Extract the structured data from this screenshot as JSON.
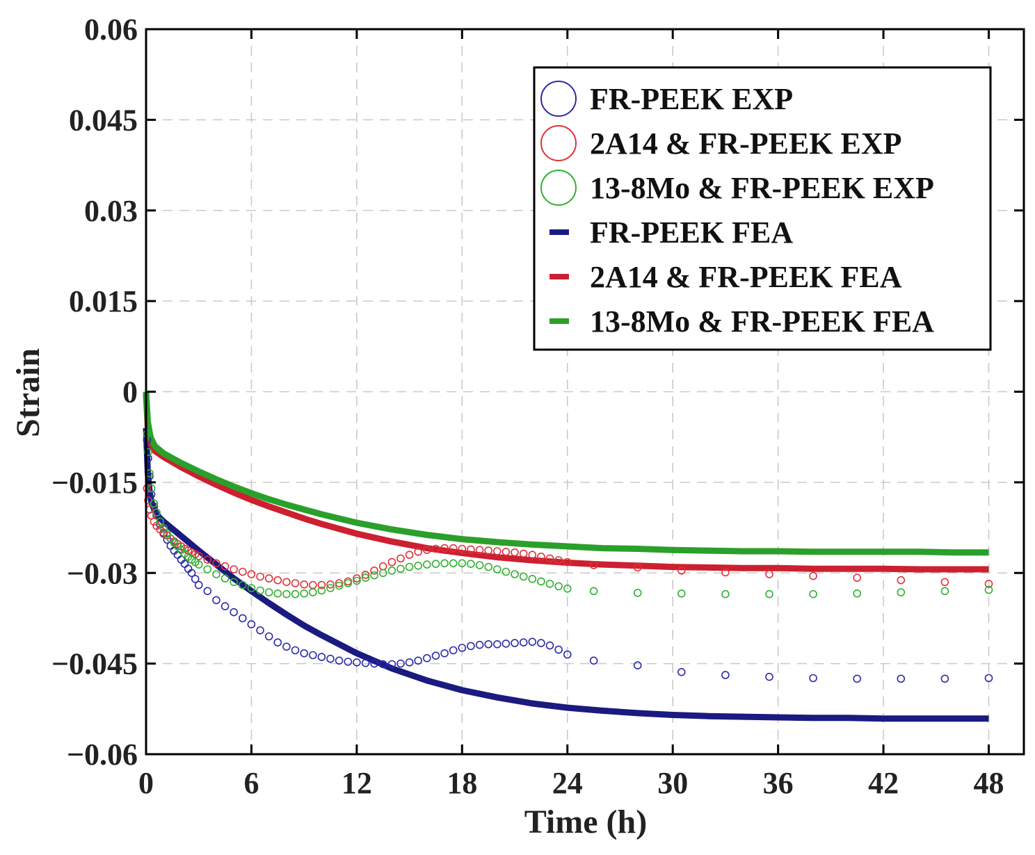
{
  "chart_data": {
    "type": "line",
    "title": "",
    "xlabel": "Time (h)",
    "ylabel": "Strain",
    "xlim": [
      0,
      50
    ],
    "ylim": [
      -0.06,
      0.06
    ],
    "xticks": [
      0,
      6,
      12,
      18,
      24,
      30,
      36,
      42,
      48
    ],
    "yticks": [
      0.06,
      0.045,
      0.03,
      0.015,
      0,
      -0.015,
      -0.03,
      -0.045,
      -0.06
    ],
    "xtick_labels": [
      "0",
      "6",
      "12",
      "18",
      "24",
      "30",
      "36",
      "42",
      "48"
    ],
    "ytick_labels": [
      "0.06",
      "0.045",
      "0.03",
      "0.015",
      "0",
      "−0.015",
      "−0.03",
      "−0.045",
      "−0.06"
    ],
    "grid": true,
    "legend_position": "top-right",
    "series": [
      {
        "name": "FR-PEEK EXP",
        "style": "markers",
        "color": "#2a2aa8",
        "x": [
          0.05,
          0.12,
          0.2,
          0.3,
          0.45,
          0.6,
          0.8,
          1.0,
          1.2,
          1.4,
          1.6,
          1.8,
          2.0,
          2.2,
          2.4,
          2.6,
          2.8,
          3.0,
          3.5,
          4.0,
          4.5,
          5.0,
          5.5,
          6.0,
          6.5,
          7.0,
          7.5,
          8.0,
          8.5,
          9.0,
          9.5,
          10.0,
          10.5,
          11.0,
          11.5,
          12.0,
          12.5,
          13.0,
          13.5,
          14.0,
          14.5,
          15.0,
          15.5,
          16.0,
          16.5,
          17.0,
          17.5,
          18.0,
          18.5,
          19.0,
          19.5,
          20.0,
          20.5,
          21.0,
          21.5,
          22.0,
          22.5,
          23.0,
          23.5,
          24.0,
          25.5,
          28.0,
          30.5,
          33.0,
          35.5,
          38.0,
          40.5,
          43.0,
          45.5,
          48.0
        ],
        "values": [
          -0.008,
          -0.011,
          -0.014,
          -0.017,
          -0.019,
          -0.0205,
          -0.022,
          -0.0235,
          -0.0245,
          -0.0255,
          -0.0263,
          -0.027,
          -0.0278,
          -0.0285,
          -0.0293,
          -0.03,
          -0.031,
          -0.032,
          -0.033,
          -0.0345,
          -0.0355,
          -0.0365,
          -0.0375,
          -0.0385,
          -0.0395,
          -0.0405,
          -0.0415,
          -0.0422,
          -0.0428,
          -0.0433,
          -0.0436,
          -0.0439,
          -0.0442,
          -0.0445,
          -0.0447,
          -0.0448,
          -0.0449,
          -0.045,
          -0.0451,
          -0.0451,
          -0.045,
          -0.0448,
          -0.0445,
          -0.0441,
          -0.0437,
          -0.0433,
          -0.0428,
          -0.0424,
          -0.0421,
          -0.0419,
          -0.0418,
          -0.0418,
          -0.0417,
          -0.0416,
          -0.0415,
          -0.0414,
          -0.0416,
          -0.042,
          -0.0427,
          -0.0435,
          -0.0445,
          -0.0453,
          -0.0464,
          -0.0469,
          -0.0472,
          -0.0474,
          -0.0475,
          -0.0475,
          -0.0475,
          -0.0474
        ]
      },
      {
        "name": "2A14 & FR-PEEK EXP",
        "style": "markers",
        "color": "#e0303a",
        "x": [
          0.05,
          0.12,
          0.2,
          0.3,
          0.45,
          0.6,
          0.8,
          1.0,
          1.2,
          1.4,
          1.6,
          1.8,
          2.0,
          2.2,
          2.4,
          2.6,
          2.8,
          3.0,
          3.5,
          4.0,
          4.5,
          5.0,
          5.5,
          6.0,
          6.5,
          7.0,
          7.5,
          8.0,
          8.5,
          9.0,
          9.5,
          10.0,
          10.5,
          11.0,
          11.5,
          12.0,
          12.5,
          13.0,
          13.5,
          14.0,
          14.5,
          15.0,
          15.5,
          16.0,
          16.5,
          17.0,
          17.5,
          18.0,
          18.5,
          19.0,
          19.5,
          20.0,
          20.5,
          21.0,
          21.5,
          22.0,
          22.5,
          23.0,
          23.5,
          24.0,
          25.5,
          28.0,
          30.5,
          33.0,
          35.5,
          38.0,
          40.5,
          43.0,
          45.5,
          48.0
        ],
        "values": [
          -0.016,
          -0.018,
          -0.0195,
          -0.0205,
          -0.0215,
          -0.0222,
          -0.0228,
          -0.0233,
          -0.0238,
          -0.0243,
          -0.0248,
          -0.0252,
          -0.0256,
          -0.026,
          -0.0263,
          -0.0266,
          -0.0269,
          -0.0272,
          -0.0278,
          -0.0284,
          -0.0289,
          -0.0294,
          -0.0298,
          -0.0302,
          -0.0306,
          -0.0309,
          -0.0312,
          -0.0315,
          -0.0317,
          -0.0319,
          -0.032,
          -0.032,
          -0.0319,
          -0.0317,
          -0.0314,
          -0.0309,
          -0.0303,
          -0.0296,
          -0.0289,
          -0.0282,
          -0.0276,
          -0.027,
          -0.0265,
          -0.0262,
          -0.026,
          -0.0259,
          -0.0259,
          -0.026,
          -0.0261,
          -0.0262,
          -0.0263,
          -0.0264,
          -0.0265,
          -0.0266,
          -0.0268,
          -0.027,
          -0.0273,
          -0.0276,
          -0.0279,
          -0.0282,
          -0.0287,
          -0.0291,
          -0.0296,
          -0.0299,
          -0.0302,
          -0.0305,
          -0.0308,
          -0.0312,
          -0.0315,
          -0.0318
        ]
      },
      {
        "name": "13-8Mo & FR-PEEK EXP",
        "style": "markers",
        "color": "#2fb02f",
        "x": [
          0.05,
          0.12,
          0.2,
          0.3,
          0.45,
          0.6,
          0.8,
          1.0,
          1.2,
          1.4,
          1.6,
          1.8,
          2.0,
          2.2,
          2.4,
          2.6,
          2.8,
          3.0,
          3.5,
          4.0,
          4.5,
          5.0,
          5.5,
          6.0,
          6.5,
          7.0,
          7.5,
          8.0,
          8.5,
          9.0,
          9.5,
          10.0,
          10.5,
          11.0,
          11.5,
          12.0,
          12.5,
          13.0,
          13.5,
          14.0,
          14.5,
          15.0,
          15.5,
          16.0,
          16.5,
          17.0,
          17.5,
          18.0,
          18.5,
          19.0,
          19.5,
          20.0,
          20.5,
          21.0,
          21.5,
          22.0,
          22.5,
          23.0,
          23.5,
          24.0,
          25.5,
          28.0,
          30.5,
          33.0,
          35.5,
          38.0,
          40.5,
          43.0,
          45.5,
          48.0
        ],
        "values": [
          -0.007,
          -0.01,
          -0.0135,
          -0.016,
          -0.0185,
          -0.02,
          -0.0215,
          -0.0226,
          -0.0235,
          -0.0243,
          -0.025,
          -0.0256,
          -0.0262,
          -0.0268,
          -0.0273,
          -0.0278,
          -0.0282,
          -0.0286,
          -0.0294,
          -0.0302,
          -0.0309,
          -0.0315,
          -0.032,
          -0.0325,
          -0.0329,
          -0.0332,
          -0.0334,
          -0.0335,
          -0.0335,
          -0.0334,
          -0.0332,
          -0.0329,
          -0.0325,
          -0.0321,
          -0.0317,
          -0.0313,
          -0.0308,
          -0.0304,
          -0.03,
          -0.0296,
          -0.0293,
          -0.029,
          -0.0288,
          -0.0286,
          -0.0285,
          -0.0284,
          -0.0284,
          -0.0284,
          -0.0285,
          -0.0287,
          -0.029,
          -0.0294,
          -0.0298,
          -0.0302,
          -0.0306,
          -0.031,
          -0.0314,
          -0.0318,
          -0.0322,
          -0.0326,
          -0.033,
          -0.0333,
          -0.0334,
          -0.0335,
          -0.0335,
          -0.0335,
          -0.0334,
          -0.0332,
          -0.033,
          -0.0328
        ]
      },
      {
        "name": "FR-PEEK FEA",
        "style": "line",
        "color": "#1a1a80",
        "x": [
          0.0,
          0.05,
          0.1,
          0.2,
          0.3,
          0.5,
          0.75,
          1.0,
          1.5,
          2,
          3,
          4,
          5,
          6,
          7,
          8,
          9,
          10,
          12,
          14,
          16,
          18,
          20,
          22,
          24,
          26,
          28,
          30,
          32,
          34,
          36,
          38,
          40,
          42,
          44,
          46,
          48
        ],
        "values": [
          -0.006,
          -0.01,
          -0.0135,
          -0.0165,
          -0.0182,
          -0.0198,
          -0.0208,
          -0.0215,
          -0.0227,
          -0.0239,
          -0.0263,
          -0.0286,
          -0.0309,
          -0.033,
          -0.035,
          -0.0369,
          -0.0387,
          -0.0403,
          -0.0433,
          -0.0458,
          -0.0478,
          -0.0494,
          -0.0506,
          -0.0516,
          -0.0523,
          -0.0528,
          -0.0532,
          -0.0535,
          -0.0537,
          -0.0538,
          -0.0539,
          -0.054,
          -0.054,
          -0.0541,
          -0.0541,
          -0.0541,
          -0.0541
        ]
      },
      {
        "name": "2A14 & FR-PEEK FEA",
        "style": "line",
        "color": "#cc2030",
        "x": [
          0.0,
          0.1,
          0.25,
          0.5,
          1,
          2,
          3,
          4,
          5,
          6,
          7,
          8,
          9,
          10,
          12,
          14,
          16,
          18,
          20,
          22,
          24,
          26,
          28,
          30,
          32,
          34,
          36,
          38,
          40,
          42,
          44,
          46,
          48
        ],
        "values": [
          -0.0005,
          -0.006,
          -0.0085,
          -0.0098,
          -0.0108,
          -0.0125,
          -0.014,
          -0.0154,
          -0.0167,
          -0.0179,
          -0.019,
          -0.02,
          -0.021,
          -0.0219,
          -0.0235,
          -0.0248,
          -0.0259,
          -0.0267,
          -0.0274,
          -0.0279,
          -0.0283,
          -0.0286,
          -0.0288,
          -0.029,
          -0.0291,
          -0.0292,
          -0.0292,
          -0.0293,
          -0.0293,
          -0.0293,
          -0.0294,
          -0.0294,
          -0.0294
        ]
      },
      {
        "name": "13-8Mo & FR-PEEK FEA",
        "style": "line",
        "color": "#2aa02a",
        "x": [
          0.0,
          0.1,
          0.25,
          0.5,
          1,
          2,
          3,
          4,
          5,
          6,
          7,
          8,
          9,
          10,
          12,
          14,
          16,
          18,
          20,
          22,
          24,
          26,
          28,
          30,
          32,
          34,
          36,
          38,
          40,
          42,
          44,
          46,
          48
        ],
        "values": [
          0.0,
          -0.005,
          -0.0075,
          -0.009,
          -0.0102,
          -0.0118,
          -0.0132,
          -0.0145,
          -0.0157,
          -0.0168,
          -0.0178,
          -0.0187,
          -0.0195,
          -0.0203,
          -0.0217,
          -0.0228,
          -0.0237,
          -0.0244,
          -0.0249,
          -0.0253,
          -0.0256,
          -0.0259,
          -0.026,
          -0.0262,
          -0.0263,
          -0.0264,
          -0.0264,
          -0.0265,
          -0.0265,
          -0.0265,
          -0.0265,
          -0.0266,
          -0.0266
        ]
      }
    ],
    "legend": [
      {
        "label": "FR-PEEK EXP",
        "marker": "circle",
        "color": "#2a2aa8"
      },
      {
        "label": "2A14 & FR-PEEK EXP",
        "marker": "circle",
        "color": "#e0303a"
      },
      {
        "label": "13-8Mo & FR-PEEK EXP",
        "marker": "circle",
        "color": "#2fb02f"
      },
      {
        "label": "FR-PEEK FEA",
        "marker": "line",
        "color": "#1a1a80"
      },
      {
        "label": "2A14 & FR-PEEK FEA",
        "marker": "line",
        "color": "#cc2030"
      },
      {
        "label": "13-8Mo & FR-PEEK FEA",
        "marker": "line",
        "color": "#2aa02a"
      }
    ]
  }
}
